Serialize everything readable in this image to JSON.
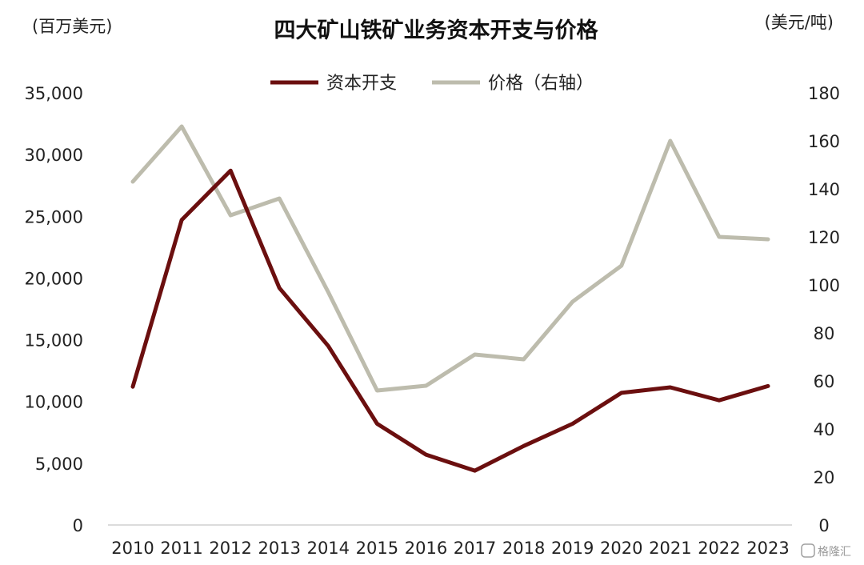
{
  "chart_data": {
    "type": "line",
    "title": "四大矿山铁矿业务资本开支与价格",
    "left_unit": "(百万美元)",
    "right_unit": "(美元/吨)",
    "categories": [
      "2010",
      "2011",
      "2012",
      "2013",
      "2014",
      "2015",
      "2016",
      "2017",
      "2018",
      "2019",
      "2020",
      "2021",
      "2022",
      "2023"
    ],
    "series": [
      {
        "name": "资本开支",
        "axis": "left",
        "color": "#6b0f0f",
        "values": [
          11200,
          24700,
          28700,
          19200,
          14500,
          8200,
          5700,
          4400,
          6400,
          8200,
          10700,
          11150,
          10100,
          11250
        ]
      },
      {
        "name": "价格（右轴）",
        "axis": "right",
        "color": "#bdbcad",
        "values": [
          143,
          166,
          129,
          136,
          97,
          56,
          58,
          71,
          69,
          93,
          108,
          160,
          120,
          119
        ]
      }
    ],
    "left_axis": {
      "min": 0,
      "max": 35000,
      "ticks": [
        "0",
        "5,000",
        "10,000",
        "15,000",
        "20,000",
        "25,000",
        "30,000",
        "35,000"
      ]
    },
    "right_axis": {
      "min": 0,
      "max": 180,
      "ticks": [
        "0",
        "20",
        "40",
        "60",
        "80",
        "100",
        "120",
        "140",
        "160",
        "180"
      ]
    },
    "legend_position": "top-center",
    "grid": false
  },
  "watermark": {
    "text": "格隆汇"
  }
}
